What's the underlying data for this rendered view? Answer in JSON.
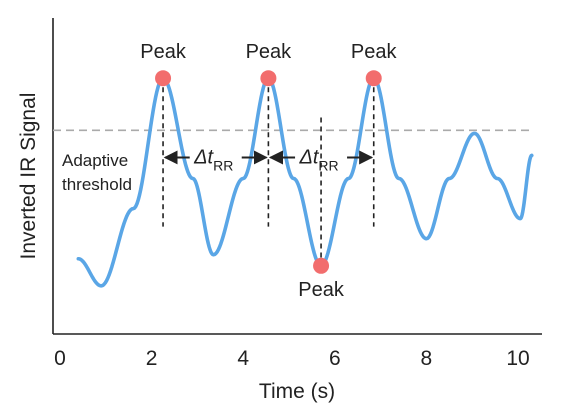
{
  "chart_data": {
    "type": "line",
    "xlabel": "Time (s)",
    "ylabel": "Inverted IR Signal",
    "xlim": [
      0,
      10.5
    ],
    "x_ticks": [
      0,
      2,
      4,
      6,
      8,
      10
    ],
    "ylim": [
      -1.55,
      1.6
    ],
    "y_ticks_shown": false,
    "grid": false,
    "series": [
      {
        "color": "#5AA6E6",
        "x": [
          0.4,
          0.9,
          1.6,
          2.25,
          2.9,
          3.35,
          4.0,
          4.55,
          5.1,
          5.7,
          6.3,
          6.85,
          7.4,
          8.0,
          8.5,
          9.05,
          9.55,
          10.05,
          10.3
        ],
        "y": [
          -0.8,
          -1.07,
          -0.3,
          1.0,
          0.0,
          -0.76,
          0.0,
          1.0,
          0.0,
          -0.87,
          0.0,
          1.0,
          0.0,
          -0.6,
          0.0,
          0.45,
          0.0,
          -0.4,
          0.23
        ]
      }
    ],
    "threshold": {
      "y": 0.48,
      "label_lines": [
        "Adaptive",
        "threshold"
      ],
      "color": "#AAAAAA"
    },
    "peaks": [
      {
        "x": 2.25,
        "y": 1.0,
        "label": "Peak",
        "label_position": "above"
      },
      {
        "x": 4.55,
        "y": 1.0,
        "label": "Peak",
        "label_position": "above"
      },
      {
        "x": 5.7,
        "y": -0.87,
        "label": "Peak",
        "label_position": "below"
      },
      {
        "x": 6.85,
        "y": 1.0,
        "label": "Peak",
        "label_position": "above"
      }
    ],
    "marker_color": "#F26D6D",
    "intervals": [
      {
        "x_start": 2.25,
        "x_end": 4.55,
        "y": 0.21,
        "label_main": "Δt",
        "label_sub": "RR"
      },
      {
        "x_start": 4.55,
        "x_end": 6.85,
        "y": 0.21,
        "label_main": "Δt",
        "label_sub": "RR"
      }
    ],
    "interval_guides": {
      "y_bottom": -0.48
    }
  }
}
